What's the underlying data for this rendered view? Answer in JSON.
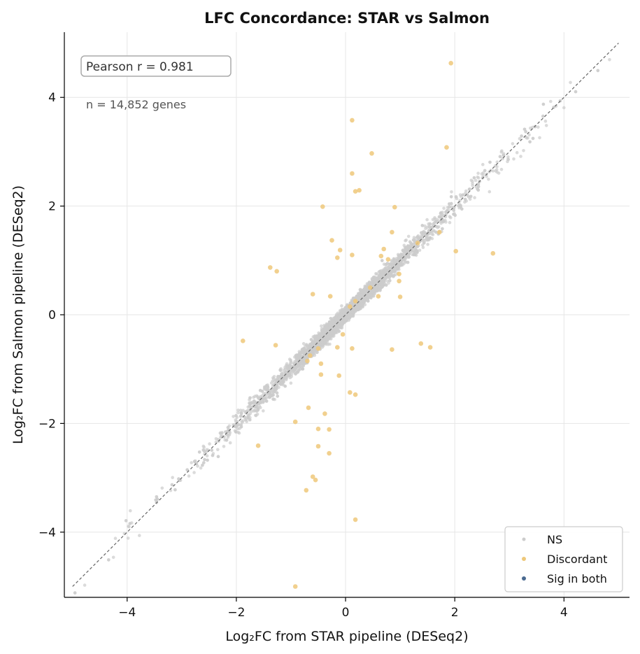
{
  "chart_data": {
    "type": "scatter",
    "title": "LFC Concordance: STAR vs Salmon",
    "xlabel": "Log₂FC from STAR pipeline (DESeq2)",
    "ylabel": "Log₂FC from Salmon pipeline (DESeq2)",
    "xlim": [
      -5.15,
      5.2
    ],
    "ylim": [
      -5.2,
      5.2
    ],
    "xticks": [
      -4,
      -2,
      0,
      2,
      4
    ],
    "yticks": [
      -4,
      -2,
      0,
      2,
      4
    ],
    "xtick_labels": [
      "−4",
      "−2",
      "0",
      "2",
      "4"
    ],
    "ytick_labels": [
      "−4",
      "−2",
      "0",
      "2",
      "4"
    ],
    "grid": true,
    "identity_line": {
      "from": [
        -5,
        -5
      ],
      "to": [
        5,
        5
      ],
      "style": "dashed"
    },
    "annotations": {
      "pearson": "Pearson r = 0.981",
      "count": "n = 14,852 genes"
    },
    "legend": {
      "placement": "lower-right",
      "entries": [
        {
          "label": "NS",
          "color": "#cccccc"
        },
        {
          "label": "Discordant",
          "color": "#eec87a"
        },
        {
          "label": "Sig in both",
          "color": "#4a6a90"
        }
      ]
    },
    "ns_cloud": {
      "description_only": false,
      "slope": 1.0,
      "x_range": [
        -5,
        5
      ],
      "concentration": "dense near 0"
    },
    "series": [
      {
        "name": "Discordant",
        "color": "#eec87a",
        "points": [
          [
            1.93,
            4.63
          ],
          [
            0.12,
            3.58
          ],
          [
            1.85,
            3.08
          ],
          [
            0.48,
            2.97
          ],
          [
            0.12,
            2.6
          ],
          [
            0.18,
            2.27
          ],
          [
            0.25,
            2.29
          ],
          [
            -0.42,
            1.99
          ],
          [
            0.9,
            1.98
          ],
          [
            0.85,
            1.52
          ],
          [
            -0.25,
            1.37
          ],
          [
            -0.1,
            1.19
          ],
          [
            0.12,
            1.1
          ],
          [
            0.7,
            1.21
          ],
          [
            -0.15,
            1.05
          ],
          [
            1.32,
            1.32
          ],
          [
            1.72,
            1.52
          ],
          [
            2.02,
            1.17
          ],
          [
            2.7,
            1.13
          ],
          [
            0.65,
            1.08
          ],
          [
            0.78,
            1.02
          ],
          [
            -1.38,
            0.87
          ],
          [
            -1.26,
            0.8
          ],
          [
            0.98,
            0.75
          ],
          [
            0.98,
            0.62
          ],
          [
            0.45,
            0.5
          ],
          [
            0.6,
            0.34
          ],
          [
            1.0,
            0.33
          ],
          [
            -0.6,
            0.38
          ],
          [
            -0.28,
            0.34
          ],
          [
            0.18,
            0.25
          ],
          [
            0.08,
            0.15
          ],
          [
            -1.88,
            -0.48
          ],
          [
            -1.28,
            -0.56
          ],
          [
            -0.5,
            -0.62
          ],
          [
            -0.15,
            -0.6
          ],
          [
            -0.05,
            -0.36
          ],
          [
            0.12,
            -0.62
          ],
          [
            0.85,
            -0.64
          ],
          [
            1.38,
            -0.53
          ],
          [
            1.55,
            -0.6
          ],
          [
            -0.65,
            -0.75
          ],
          [
            -0.7,
            -0.85
          ],
          [
            -0.45,
            -0.9
          ],
          [
            -0.45,
            -1.1
          ],
          [
            -0.12,
            -1.12
          ],
          [
            0.08,
            -1.43
          ],
          [
            0.18,
            -1.47
          ],
          [
            -0.68,
            -1.71
          ],
          [
            -0.38,
            -1.82
          ],
          [
            -0.92,
            -1.97
          ],
          [
            -0.5,
            -2.1
          ],
          [
            -0.3,
            -2.11
          ],
          [
            -1.6,
            -2.41
          ],
          [
            -0.5,
            -2.42
          ],
          [
            -0.3,
            -2.55
          ],
          [
            -0.6,
            -2.98
          ],
          [
            -0.55,
            -3.04
          ],
          [
            -0.72,
            -3.23
          ],
          [
            0.18,
            -3.77
          ],
          [
            -0.92,
            -5.0
          ]
        ]
      },
      {
        "name": "Sig in both",
        "color": "#4a6a90",
        "points": []
      }
    ]
  }
}
